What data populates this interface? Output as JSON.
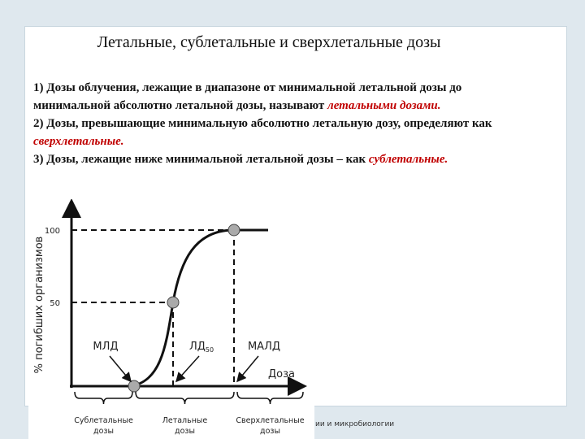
{
  "title": "Летальные, сублетальные и сверхлетальные дозы",
  "paragraphs": [
    [
      {
        "text": "1) Дозы облучения, лежащие в диапазоне от минимальной летальной дозы до минимальной абсолютно летальной дозы, называют ",
        "emphasis": false
      },
      {
        "text": "летальными дозами.",
        "emphasis": true
      }
    ],
    [
      {
        "text": "2) Дозы, превышающие минимальную абсолютно летальную дозу, определяют как ",
        "emphasis": false
      },
      {
        "text": "сверхлетальные.",
        "emphasis": true
      }
    ],
    [
      {
        "text": "3) Дозы, лежащие ниже минимальной летальной дозы – как ",
        "emphasis": false
      },
      {
        "text": "сублетальные.",
        "emphasis": true
      }
    ]
  ],
  "diagram": {
    "y_label": "% погибших организмов",
    "x_label": "Доза",
    "y_tick_high": "100",
    "y_tick_mid": "50",
    "points": [
      {
        "label": "МЛД",
        "subscript": null
      },
      {
        "label": "ЛД",
        "subscript": "50"
      },
      {
        "label": "МАЛД",
        "subscript": null
      }
    ],
    "ranges": [
      [
        "Сублетальные",
        "дозы"
      ],
      [
        "Летальные",
        "дозы"
      ],
      [
        "Сверхлетальные",
        "дозы"
      ]
    ]
  },
  "footer": "ии и микробиологии"
}
